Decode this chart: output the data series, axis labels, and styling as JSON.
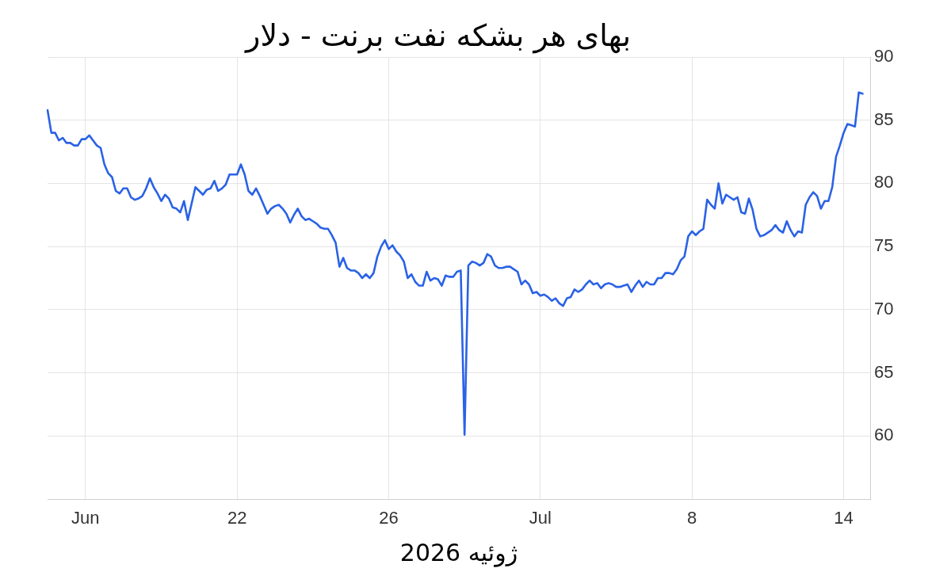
{
  "chart_data": {
    "type": "line",
    "title": "بهای هر بشکه نفت برنت - دلار",
    "xlabel": "ژوئیه 2026",
    "categories": [
      null,
      null,
      null,
      null,
      null,
      null,
      null,
      null,
      null,
      null,
      "Jun",
      null,
      null,
      null,
      null,
      null,
      null,
      null,
      null,
      null,
      null,
      null,
      null,
      null,
      null,
      null,
      null,
      null,
      null,
      null,
      null,
      null,
      null,
      null,
      null,
      null,
      null,
      null,
      null,
      null,
      null,
      null,
      null,
      null,
      null,
      null,
      null,
      null,
      null,
      null,
      "22",
      null,
      null,
      null,
      null,
      null,
      null,
      null,
      null,
      null,
      null,
      null,
      null,
      null,
      null,
      null,
      null,
      null,
      null,
      null,
      null,
      null,
      null,
      null,
      null,
      null,
      null,
      null,
      null,
      null,
      null,
      null,
      null,
      null,
      null,
      null,
      null,
      null,
      null,
      null,
      "26",
      null,
      null,
      null,
      null,
      null,
      null,
      null,
      null,
      null,
      null,
      null,
      null,
      null,
      null,
      null,
      null,
      null,
      null,
      null,
      null,
      null,
      null,
      null,
      null,
      null,
      null,
      null,
      null,
      null,
      null,
      null,
      null,
      null,
      null,
      null,
      null,
      null,
      null,
      null,
      "Jul",
      null,
      null,
      null,
      null,
      null,
      null,
      null,
      null,
      null,
      null,
      null,
      null,
      null,
      null,
      null,
      null,
      null,
      null,
      null,
      null,
      null,
      null,
      null,
      null,
      null,
      null,
      null,
      null,
      null,
      null,
      null,
      null,
      null,
      null,
      null,
      null,
      null,
      null,
      null,
      "8",
      null,
      null,
      null,
      null,
      null,
      null,
      null,
      null,
      null,
      null,
      null,
      null,
      null,
      null,
      null,
      null,
      null,
      null,
      null,
      null,
      null,
      null,
      null,
      null,
      null,
      null,
      null,
      null,
      null,
      null,
      null,
      null,
      null,
      null,
      null,
      null,
      null,
      null,
      null,
      "14",
      null,
      null,
      null,
      null,
      null,
      null,
      null
    ],
    "values": [
      85.8,
      84.0,
      84.0,
      83.4,
      83.6,
      83.2,
      83.2,
      83.0,
      83.0,
      83.5,
      83.5,
      83.8,
      83.4,
      83.0,
      82.8,
      81.5,
      80.8,
      80.5,
      79.4,
      79.2,
      79.6,
      79.6,
      78.9,
      78.7,
      78.8,
      79.0,
      79.6,
      80.4,
      79.7,
      79.2,
      78.6,
      79.1,
      78.8,
      78.1,
      78.0,
      77.7,
      78.6,
      77.1,
      78.4,
      79.7,
      79.4,
      79.1,
      79.5,
      79.6,
      80.2,
      79.4,
      79.6,
      79.9,
      80.7,
      80.7,
      80.7,
      81.5,
      80.7,
      79.4,
      79.1,
      79.6,
      79.0,
      78.3,
      77.6,
      78.0,
      78.2,
      78.3,
      78.0,
      77.6,
      76.9,
      77.5,
      78.0,
      77.4,
      77.1,
      77.2,
      77.0,
      76.8,
      76.5,
      76.4,
      76.4,
      75.9,
      75.3,
      73.4,
      74.1,
      73.3,
      73.1,
      73.1,
      72.9,
      72.5,
      72.8,
      72.5,
      72.9,
      74.2,
      75.0,
      75.5,
      74.8,
      75.1,
      74.6,
      74.3,
      73.8,
      72.5,
      72.8,
      72.2,
      71.9,
      71.9,
      73.0,
      72.3,
      72.5,
      72.4,
      71.9,
      72.7,
      72.6,
      72.6,
      73.0,
      73.1,
      60.1,
      73.5,
      73.8,
      73.7,
      73.5,
      73.7,
      74.4,
      74.2,
      73.5,
      73.3,
      73.3,
      73.4,
      73.4,
      73.2,
      73.0,
      72.0,
      72.3,
      72.0,
      71.3,
      71.4,
      71.1,
      71.2,
      71.0,
      70.7,
      70.9,
      70.5,
      70.3,
      70.9,
      71.0,
      71.6,
      71.4,
      71.6,
      72.0,
      72.3,
      72.0,
      72.1,
      71.7,
      72.0,
      72.1,
      72.0,
      71.8,
      71.8,
      71.9,
      72.0,
      71.4,
      71.9,
      72.3,
      71.8,
      72.2,
      72.0,
      72.0,
      72.5,
      72.5,
      72.9,
      72.9,
      72.8,
      73.2,
      73.9,
      74.2,
      75.8,
      76.2,
      75.9,
      76.2,
      76.4,
      78.7,
      78.3,
      78.0,
      80.0,
      78.4,
      79.1,
      78.9,
      78.7,
      78.9,
      77.7,
      77.6,
      78.8,
      77.9,
      76.4,
      75.8,
      75.9,
      76.1,
      76.3,
      76.7,
      76.3,
      76.1,
      77.0,
      76.3,
      75.8,
      76.2,
      76.1,
      78.3,
      78.9,
      79.3,
      79.0,
      78.0,
      78.6,
      78.6,
      79.7,
      82.1,
      83.0,
      84.0,
      84.7,
      84.6,
      84.5,
      87.2,
      87.1,
      null,
      null
    ],
    "color": "#2a62e6",
    "ylim": [
      55,
      90
    ],
    "yticks": [
      60,
      65,
      70,
      75,
      80,
      85,
      90
    ],
    "grid": true
  }
}
